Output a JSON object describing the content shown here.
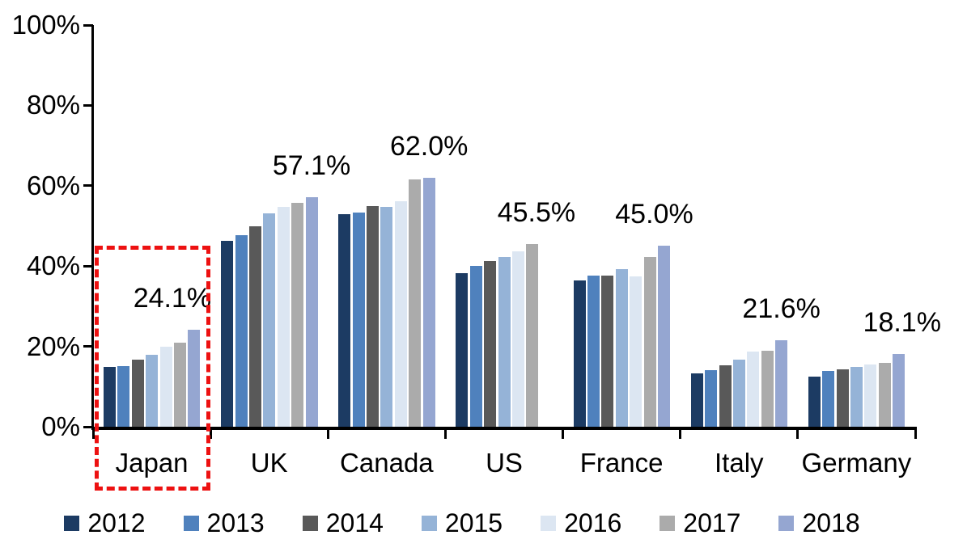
{
  "chart_data": {
    "type": "bar",
    "title": "",
    "xlabel": "",
    "ylabel": "",
    "categories": [
      "Japan",
      "UK",
      "Canada",
      "US",
      "France",
      "Italy",
      "Germany"
    ],
    "series": [
      {
        "name": "2012",
        "color": "#1C3B63",
        "values": [
          14.8,
          46.3,
          53.0,
          38.3,
          36.5,
          13.2,
          12.5
        ]
      },
      {
        "name": "2013",
        "color": "#4F81BD",
        "values": [
          15.0,
          47.7,
          53.3,
          40.1,
          37.7,
          14.0,
          13.9
        ]
      },
      {
        "name": "2014",
        "color": "#595959",
        "values": [
          16.7,
          49.9,
          54.9,
          41.2,
          37.7,
          15.2,
          14.3
        ]
      },
      {
        "name": "2015",
        "color": "#95B3D7",
        "values": [
          18.0,
          53.1,
          54.7,
          42.2,
          39.2,
          16.8,
          14.8
        ]
      },
      {
        "name": "2016",
        "color": "#DCE6F2",
        "values": [
          19.9,
          54.7,
          56.2,
          43.6,
          37.4,
          18.7,
          15.4
        ]
      },
      {
        "name": "2017",
        "color": "#ABABAB",
        "values": [
          21.0,
          55.8,
          61.5,
          45.5,
          42.3,
          19.0,
          15.9
        ]
      },
      {
        "name": "2018",
        "color": "#95A6D1",
        "values": [
          24.1,
          57.1,
          62.0,
          null,
          45.0,
          21.6,
          18.1
        ]
      }
    ],
    "data_labels": [
      "24.1%",
      "57.1%",
      "62.0%",
      "45.5%",
      "45.0%",
      "21.6%",
      "18.1%"
    ],
    "y_axis": {
      "min": 0,
      "max": 100,
      "ticks": [
        {
          "value": 0,
          "label": "0%"
        },
        {
          "value": 20,
          "label": "20%"
        },
        {
          "value": 40,
          "label": "40%"
        },
        {
          "value": 60,
          "label": "60%"
        },
        {
          "value": 80,
          "label": "80%"
        },
        {
          "value": 100,
          "label": "100%"
        }
      ]
    },
    "legend": {
      "position": "bottom",
      "entries": [
        "2012",
        "2013",
        "2014",
        "2015",
        "2016",
        "2017",
        "2018"
      ]
    },
    "grid": false,
    "highlight": {
      "category": "Japan",
      "color": "#ED1111",
      "style": "dashed-rectangle"
    }
  }
}
